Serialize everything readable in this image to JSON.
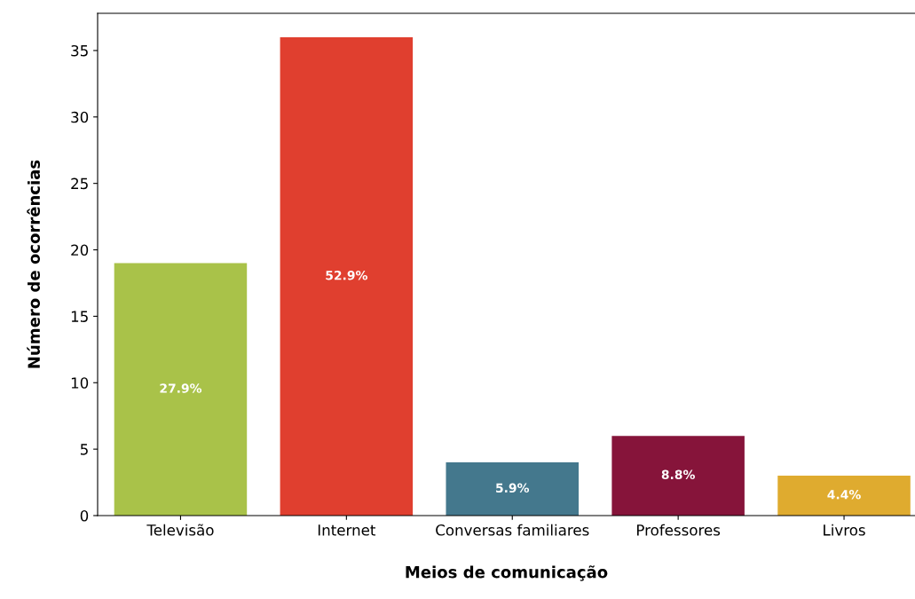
{
  "chart_data": {
    "type": "bar",
    "xlabel": "Meios de comunicação",
    "ylabel": "Número de ocorrências",
    "categories": [
      "Televisão",
      "Internet",
      "Conversas familiares",
      "Professores",
      "Livros"
    ],
    "values": [
      19,
      36,
      4,
      6,
      3
    ],
    "colors": [
      "#a9c249",
      "#e03f2f",
      "#44788d",
      "#86143a",
      "#dfab2f"
    ],
    "annotations": [
      "27.9%",
      "52.9%",
      "5.9%",
      "8.8%",
      "4.4%"
    ],
    "ylim": [
      0,
      37.8
    ],
    "yticks": [
      0,
      5,
      10,
      15,
      20,
      25,
      30,
      35
    ],
    "grid": false
  }
}
